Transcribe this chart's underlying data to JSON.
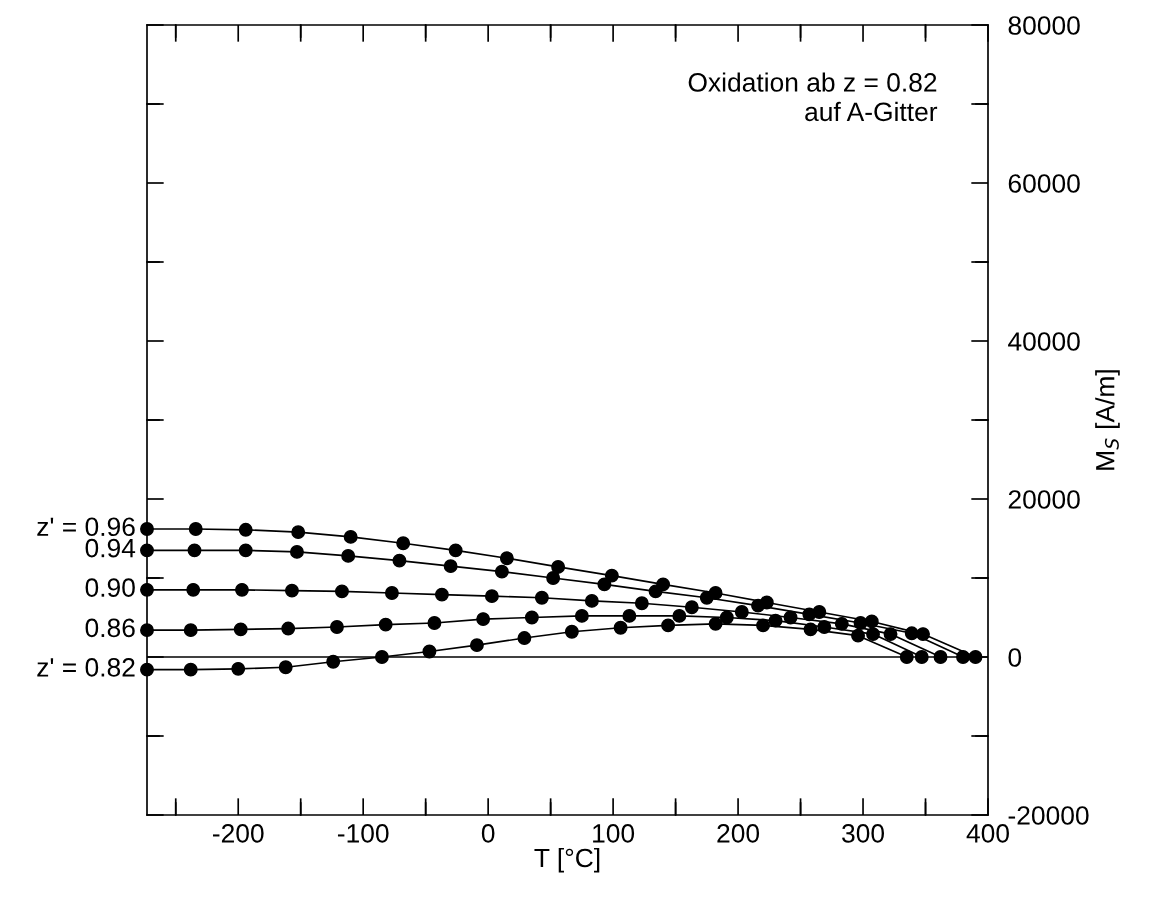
{
  "chart_data": {
    "type": "line",
    "xlabel": "T [°C]",
    "ylabel": "M$_{S}$ [A/m]",
    "annotations": [
      "Oxidation ab z = 0.82\nauf A-Gitter"
    ],
    "xlim": [
      -273,
      400
    ],
    "ylim": [
      -20000,
      80000
    ],
    "xticks": [
      {
        "value": -250,
        "label": null
      },
      -200,
      {
        "value": -150,
        "label": null
      },
      -100,
      {
        "value": -50,
        "label": null
      },
      0,
      {
        "value": 50,
        "label": null
      },
      100,
      {
        "value": 150,
        "label": null
      },
      200,
      {
        "value": 250,
        "label": null
      },
      300,
      {
        "value": 350,
        "label": null
      },
      400
    ],
    "yticks": [
      -20000,
      {
        "value": -10000,
        "label": null
      },
      0,
      {
        "value": 10000,
        "label": null
      },
      20000,
      {
        "value": 30000,
        "label": null
      },
      40000,
      {
        "value": 50000,
        "label": null
      },
      60000,
      {
        "value": 70000,
        "label": null
      },
      80000
    ],
    "ref_lines": [
      {
        "axis": "y",
        "value": 0,
        "color": "#000000"
      }
    ],
    "marker": "circle",
    "grid": false,
    "legend": "left",
    "series": [
      {
        "name": "z' = 0.96",
        "color": "#000000",
        "x": [
          -273,
          -234,
          -194,
          -152,
          -110,
          -68,
          -26,
          15,
          56,
          99,
          140,
          182,
          223,
          265,
          307,
          348,
          390
        ],
        "values": [
          16200,
          16200,
          16100,
          15800,
          15200,
          14400,
          13500,
          12500,
          11400,
          10300,
          9200,
          8100,
          6900,
          5700,
          4500,
          2900,
          0
        ]
      },
      {
        "name": "0.94",
        "color": "#000000",
        "x": [
          -273,
          -235,
          -194,
          -153,
          -112,
          -71,
          -30,
          11,
          52,
          93,
          134,
          175,
          216,
          257,
          298,
          339,
          380
        ],
        "values": [
          13500,
          13500,
          13500,
          13300,
          12800,
          12200,
          11500,
          10800,
          10000,
          9200,
          8300,
          7500,
          6500,
          5400,
          4300,
          3000,
          0
        ]
      },
      {
        "name": "0.90",
        "color": "#000000",
        "x": [
          -273,
          -236,
          -197,
          -157,
          -117,
          -77,
          -37,
          3,
          43,
          83,
          123,
          163,
          203,
          242,
          283,
          322,
          362
        ],
        "values": [
          8500,
          8500,
          8500,
          8400,
          8300,
          8100,
          7900,
          7700,
          7500,
          7100,
          6800,
          6300,
          5700,
          5000,
          4200,
          2900,
          0
        ]
      },
      {
        "name": "0.86",
        "color": "#000000",
        "x": [
          -273,
          -238,
          -198,
          -160,
          -121,
          -82,
          -43,
          -4,
          35,
          75,
          113,
          153,
          191,
          230,
          269,
          308,
          347
        ],
        "values": [
          3400,
          3400,
          3500,
          3600,
          3800,
          4100,
          4300,
          4800,
          5000,
          5200,
          5200,
          5200,
          5000,
          4600,
          3800,
          2900,
          0
        ]
      },
      {
        "name": "z' = 0.82",
        "color": "#000000",
        "x": [
          -273,
          -238,
          -200,
          -162,
          -124,
          -85,
          -47,
          -9,
          29,
          67,
          106,
          144,
          182,
          220,
          258,
          296,
          335
        ],
        "values": [
          -1600,
          -1600,
          -1500,
          -1300,
          -600,
          0,
          700,
          1500,
          2400,
          3200,
          3700,
          4000,
          4200,
          4000,
          3500,
          2700,
          0
        ]
      }
    ]
  }
}
